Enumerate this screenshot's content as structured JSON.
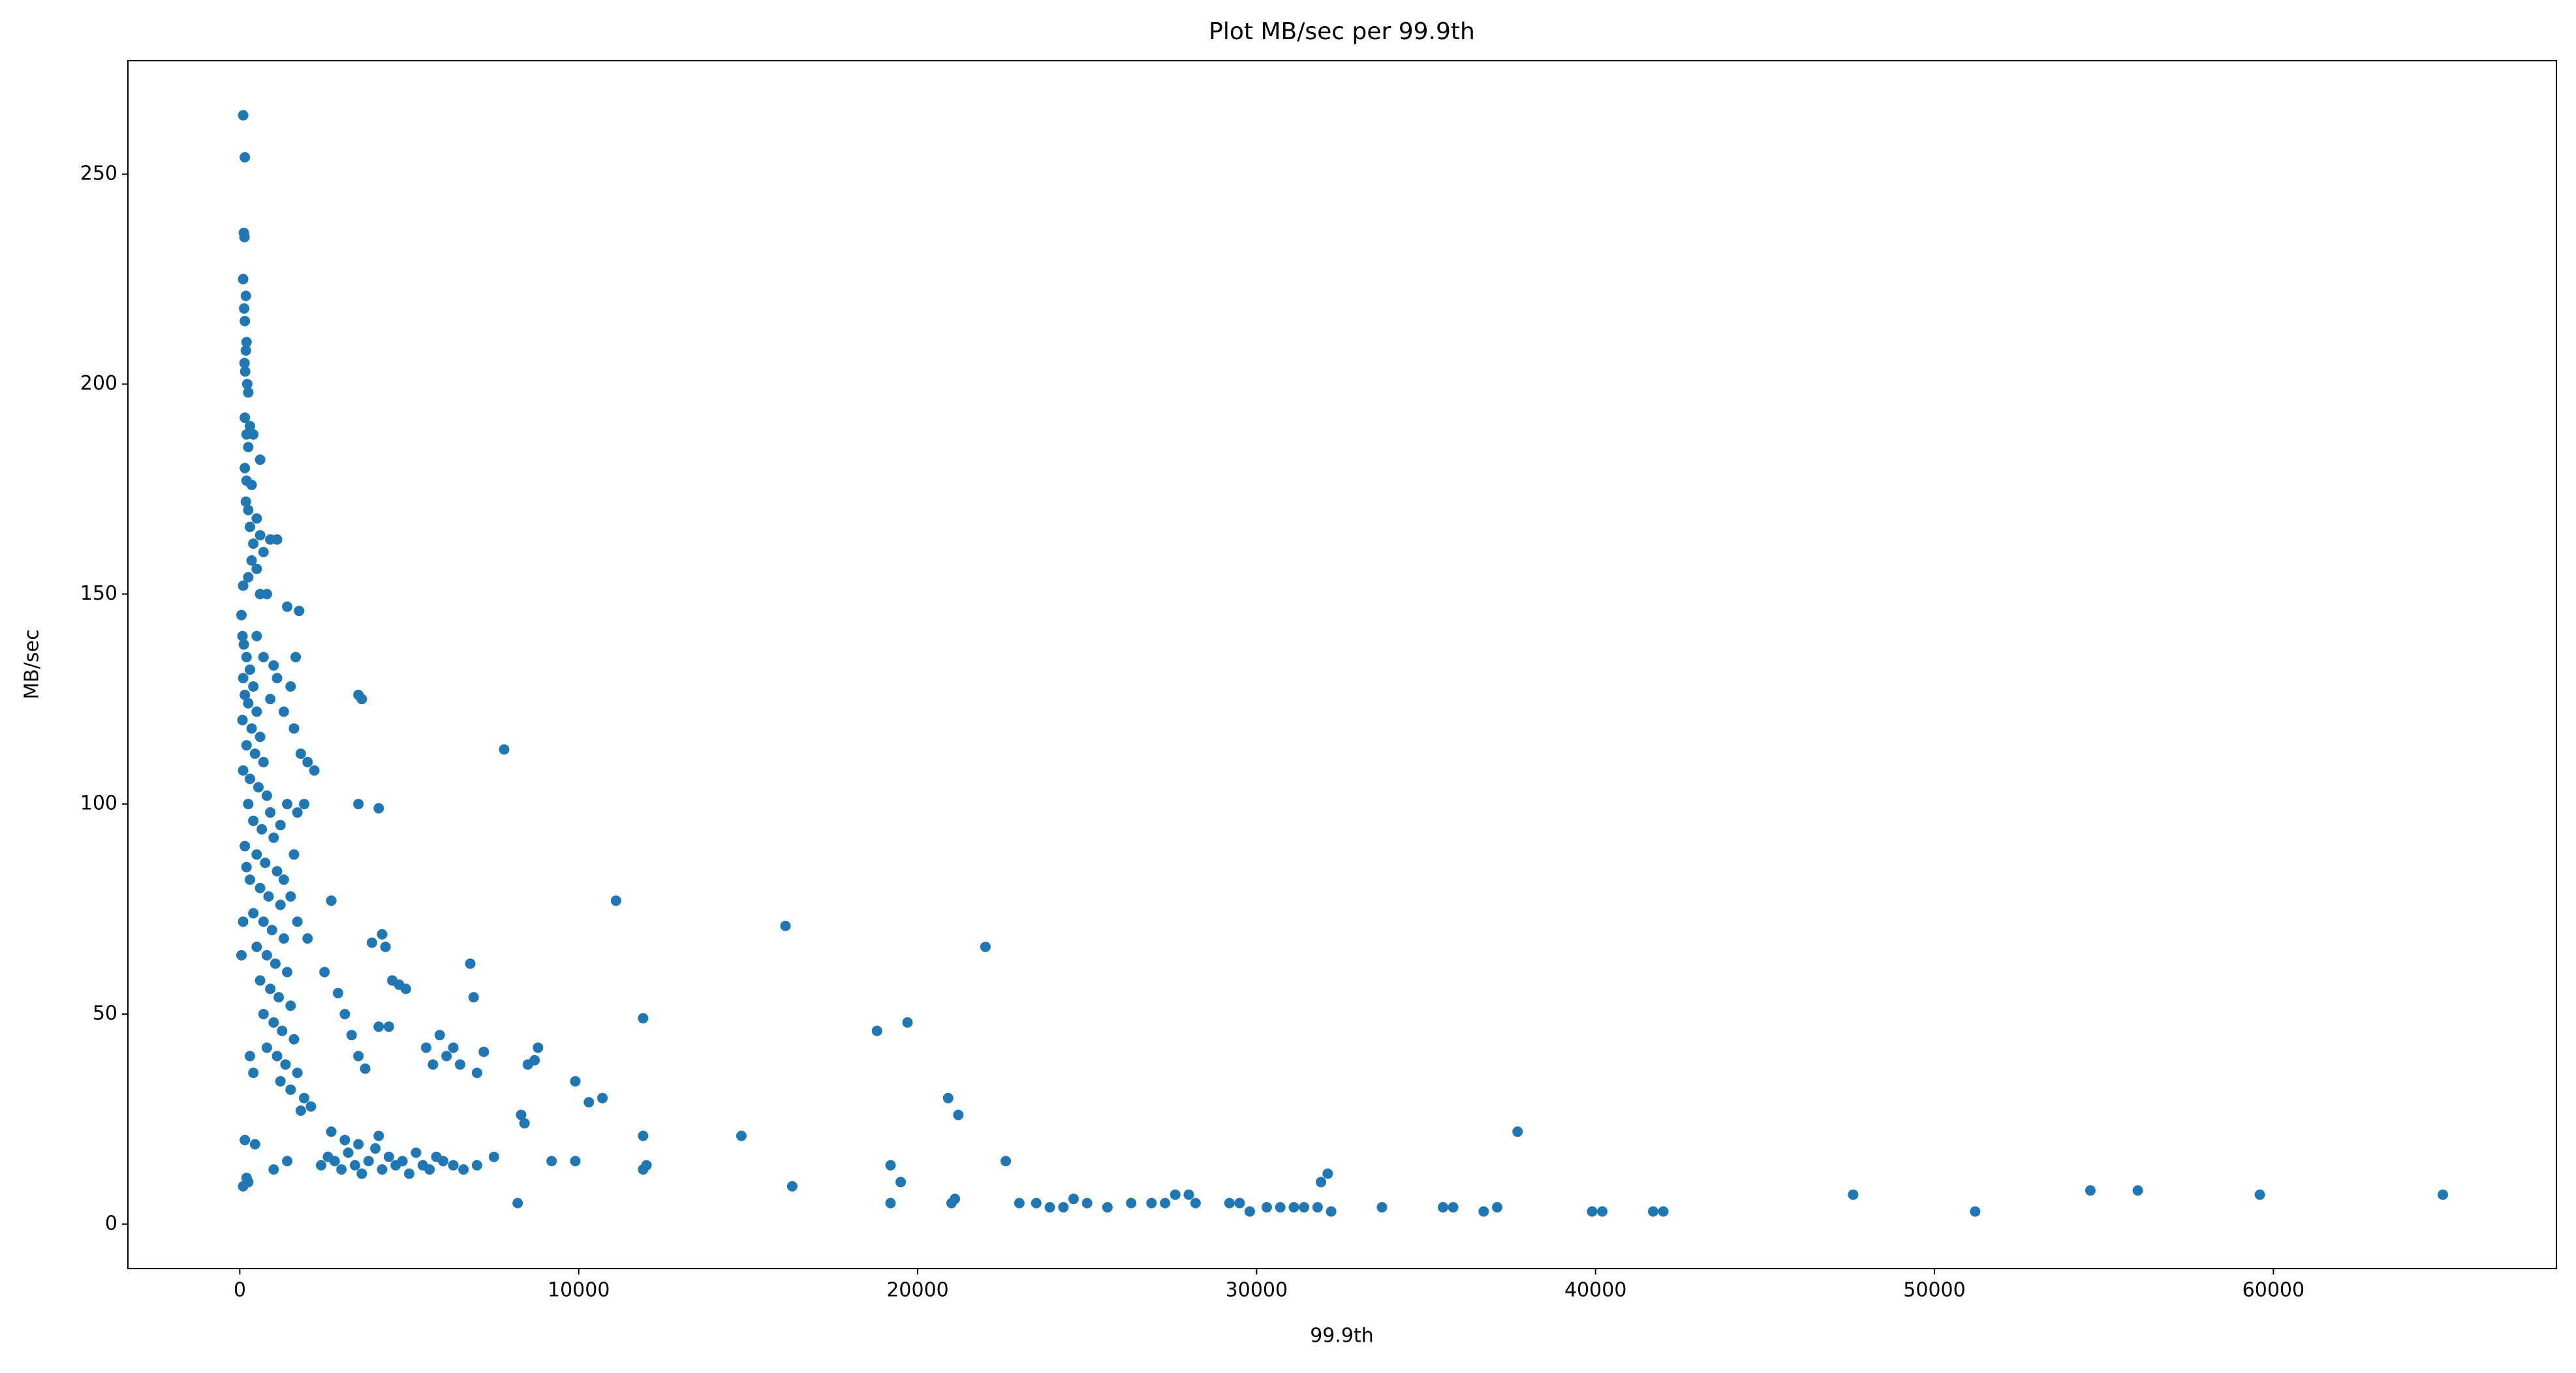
{
  "chart_data": {
    "type": "scatter",
    "title": "Plot MB/sec per 99.9th",
    "x_label": "99.9th",
    "y_label": "MB/sec",
    "color": "#1f77b4",
    "xlim": [
      -3300,
      68350
    ],
    "ylim": [
      -10.6,
      277
    ],
    "xticks": [
      0,
      10000,
      20000,
      30000,
      40000,
      50000,
      60000
    ],
    "yticks": [
      0,
      50,
      100,
      150,
      200,
      250
    ],
    "x": [
      100,
      150,
      120,
      140,
      100,
      180,
      130,
      150,
      200,
      180,
      140,
      160,
      220,
      250,
      150,
      300,
      200,
      400,
      250,
      600,
      150,
      200,
      350,
      180,
      250,
      500,
      300,
      600,
      400,
      1100,
      900,
      700,
      350,
      500,
      250,
      100,
      600,
      800,
      1400,
      1750,
      1650,
      1000,
      3500,
      3600,
      7800,
      3500,
      4100,
      50,
      80,
      120,
      200,
      300,
      100,
      400,
      150,
      250,
      500,
      80,
      350,
      600,
      200,
      450,
      700,
      100,
      300,
      550,
      800,
      250,
      900,
      400,
      650,
      1000,
      150,
      500,
      750,
      1100,
      300,
      600,
      850,
      1200,
      400,
      700,
      950,
      1300,
      500,
      800,
      1050,
      1400,
      600,
      900,
      1150,
      1500,
      700,
      1000,
      1250,
      1600,
      800,
      1100,
      1350,
      1700,
      1200,
      1500,
      1900,
      2100,
      1800,
      2000,
      1700,
      1500,
      1300,
      1600,
      1200,
      1400,
      1700,
      1900,
      2200,
      2000,
      1800,
      1600,
      1300,
      1500,
      1100,
      900,
      700,
      500,
      200,
      100,
      50,
      300,
      400,
      150,
      200,
      250,
      100,
      450,
      1000,
      1400,
      2400,
      2600,
      2800,
      3000,
      3200,
      3400,
      3600,
      3800,
      4000,
      4200,
      4400,
      4600,
      4800,
      5000,
      5200,
      5400,
      5600,
      5800,
      6000,
      6300,
      6600,
      7000,
      7500,
      3100,
      3500,
      4100,
      2700,
      2500,
      2700,
      2900,
      3100,
      3300,
      3500,
      3700,
      3900,
      4200,
      4300,
      4500,
      4700,
      4900,
      4400,
      4100,
      5500,
      5700,
      5900,
      6100,
      6300,
      6500,
      6800,
      6900,
      7000,
      7200,
      8300,
      8400,
      8200,
      8500,
      8800,
      8700,
      9200,
      9900,
      9900,
      10300,
      10700,
      11100,
      11900,
      11900,
      11900,
      12000,
      14800,
      16100,
      16300,
      18800,
      19200,
      19200,
      19500,
      19700,
      20900,
      21000,
      21100,
      21200,
      22000,
      22600,
      23000,
      23500,
      23900,
      24300,
      24600,
      25000,
      25600,
      26300,
      26900,
      27300,
      27600,
      28000,
      28200,
      29200,
      29500,
      29800,
      30300,
      30700,
      31100,
      31400,
      31800,
      31900,
      32100,
      32200,
      33700,
      35500,
      35800,
      36700,
      37100,
      37700,
      39900,
      40200,
      41700,
      42000,
      47600,
      51200,
      54600,
      56000,
      59600,
      65000
    ],
    "y": [
      264,
      254,
      236,
      235,
      225,
      221,
      218,
      215,
      210,
      208,
      205,
      203,
      200,
      198,
      192,
      190,
      188,
      188,
      185,
      182,
      180,
      177,
      176,
      172,
      170,
      168,
      166,
      164,
      162,
      163,
      163,
      160,
      158,
      156,
      154,
      152,
      150,
      150,
      147,
      146,
      135,
      133,
      126,
      125,
      113,
      100,
      99,
      145,
      140,
      138,
      135,
      132,
      130,
      128,
      126,
      124,
      122,
      120,
      118,
      116,
      114,
      112,
      110,
      108,
      106,
      104,
      102,
      100,
      98,
      96,
      94,
      92,
      90,
      88,
      86,
      84,
      82,
      80,
      78,
      76,
      74,
      72,
      70,
      68,
      66,
      64,
      62,
      60,
      58,
      56,
      54,
      52,
      50,
      48,
      46,
      44,
      42,
      40,
      38,
      36,
      34,
      32,
      30,
      28,
      27,
      68,
      72,
      78,
      82,
      88,
      95,
      100,
      98,
      100,
      108,
      110,
      112,
      118,
      122,
      128,
      130,
      125,
      135,
      140,
      85,
      72,
      64,
      40,
      36,
      20,
      11,
      10,
      9,
      19,
      13,
      15,
      14,
      16,
      15,
      13,
      17,
      14,
      12,
      15,
      18,
      13,
      16,
      14,
      15,
      12,
      17,
      14,
      13,
      16,
      15,
      14,
      13,
      14,
      16,
      20,
      19,
      21,
      22,
      60,
      77,
      55,
      50,
      45,
      40,
      37,
      67,
      69,
      66,
      58,
      57,
      56,
      47,
      47,
      42,
      38,
      45,
      40,
      42,
      38,
      62,
      54,
      36,
      41,
      26,
      24,
      5,
      38,
      42,
      39,
      15,
      34,
      15,
      29,
      30,
      77,
      49,
      21,
      13,
      14,
      21,
      71,
      9,
      46,
      14,
      5,
      10,
      48,
      30,
      5,
      6,
      26,
      66,
      15,
      5,
      5,
      4,
      4,
      6,
      5,
      4,
      5,
      5,
      5,
      7,
      7,
      5,
      5,
      5,
      3,
      4,
      4,
      4,
      4,
      4,
      10,
      12,
      3,
      4,
      4,
      4,
      3,
      4,
      22,
      3,
      3,
      3,
      3,
      7,
      3,
      8,
      8,
      7,
      7
    ]
  }
}
